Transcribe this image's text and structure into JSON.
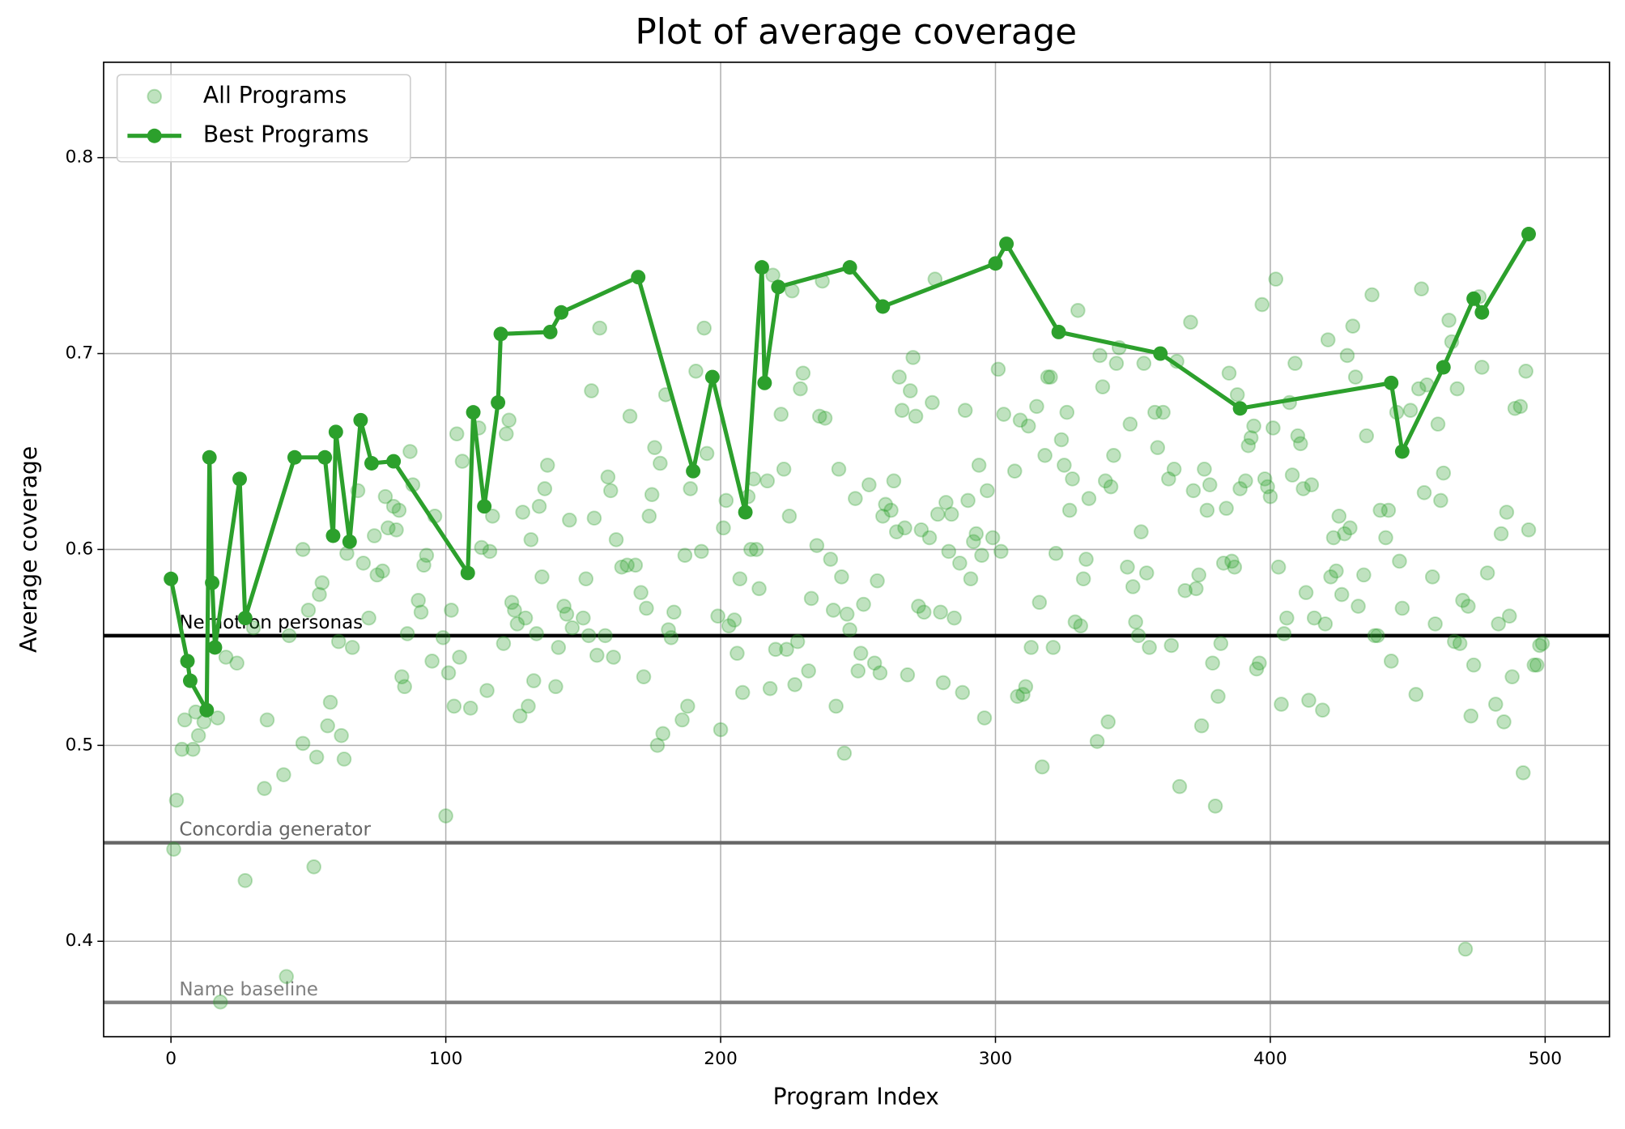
{
  "chart_data": {
    "type": "scatter",
    "title": "Plot of average coverage",
    "xlabel": "Program Index",
    "ylabel": "Average coverage",
    "xlim": [
      -24.5,
      523.4
    ],
    "ylim": [
      0.3513,
      0.8487
    ],
    "xticks": [
      0,
      100,
      200,
      300,
      400,
      500
    ],
    "yticks": [
      0.4,
      0.5,
      0.6,
      0.7,
      0.8
    ],
    "grid": true,
    "legend": "upper left",
    "hlines": [
      {
        "label": "Nemotron personas",
        "value": 0.556,
        "color": "#000000"
      },
      {
        "label": "Concordia generator",
        "value": 0.4503,
        "color": "#666666"
      },
      {
        "label": "Name baseline",
        "value": 0.3688,
        "color": "#808080"
      }
    ],
    "series": [
      {
        "name": "All Programs",
        "type": "scatter",
        "color": "#2ca02c",
        "alpha": 0.3,
        "x": [
          1,
          2,
          4,
          5,
          8,
          9,
          10,
          12,
          17,
          18,
          20,
          24,
          27,
          30,
          34,
          35,
          41,
          42,
          43,
          48,
          48,
          50,
          52,
          53,
          54,
          55,
          57,
          58,
          61,
          62,
          63,
          64,
          66,
          68,
          70,
          72,
          74,
          75,
          77,
          78,
          79,
          81,
          82,
          83,
          84,
          85,
          86,
          87,
          88,
          90,
          91,
          92,
          93,
          95,
          96,
          99,
          100,
          101,
          102,
          103,
          104,
          105,
          106,
          109,
          112,
          113,
          115,
          116,
          117,
          121,
          122,
          123,
          124,
          125,
          126,
          127,
          128,
          129,
          130,
          131,
          132,
          133,
          134,
          135,
          136,
          137,
          140,
          141,
          143,
          144,
          145,
          146,
          150,
          151,
          152,
          153,
          154,
          155,
          156,
          158,
          159,
          160,
          161,
          162,
          164,
          166,
          167,
          169,
          171,
          172,
          173,
          174,
          175,
          176,
          177,
          178,
          179,
          180,
          181,
          182,
          183,
          186,
          187,
          188,
          189,
          191,
          193,
          194,
          195,
          199,
          200,
          201,
          202,
          203,
          205,
          206,
          207,
          208,
          210,
          211,
          212,
          213,
          214,
          217,
          218,
          219,
          220,
          222,
          223,
          224,
          225,
          226,
          227,
          228,
          229,
          230,
          232,
          233,
          235,
          236,
          237,
          238,
          240,
          241,
          242,
          243,
          244,
          245,
          246,
          247,
          249,
          250,
          251,
          252,
          254,
          256,
          257,
          258,
          259,
          260,
          262,
          263,
          264,
          265,
          266,
          267,
          268,
          269,
          270,
          271,
          272,
          273,
          274,
          276,
          277,
          278,
          279,
          280,
          281,
          282,
          283,
          284,
          285,
          287,
          288,
          289,
          290,
          291,
          292,
          293,
          294,
          295,
          296,
          297,
          299,
          301,
          302,
          303,
          307,
          308,
          309,
          310,
          311,
          312,
          313,
          315,
          316,
          317,
          318,
          319,
          320,
          321,
          322,
          324,
          325,
          326,
          327,
          328,
          329,
          330,
          331,
          332,
          333,
          334,
          337,
          338,
          339,
          340,
          341,
          342,
          343,
          344,
          345,
          348,
          349,
          350,
          351,
          352,
          353,
          354,
          355,
          356,
          358,
          359,
          361,
          363,
          364,
          365,
          366,
          367,
          369,
          371,
          372,
          373,
          374,
          375,
          376,
          377,
          378,
          379,
          380,
          381,
          382,
          383,
          384,
          385,
          386,
          387,
          388,
          389,
          391,
          392,
          393,
          394,
          395,
          396,
          397,
          398,
          399,
          400,
          401,
          402,
          403,
          404,
          405,
          406,
          407,
          408,
          409,
          410,
          411,
          412,
          413,
          414,
          415,
          416,
          419,
          420,
          421,
          422,
          423,
          424,
          425,
          426,
          427,
          428,
          429,
          430,
          431,
          432,
          434,
          435,
          437,
          438,
          439,
          440,
          442,
          443,
          444,
          446,
          447,
          448,
          451,
          453,
          454,
          455,
          456,
          457,
          459,
          460,
          461,
          462,
          463,
          465,
          466,
          467,
          468,
          469,
          470,
          471,
          472,
          473,
          474,
          476,
          477,
          479,
          482,
          483,
          484,
          485,
          486,
          487,
          488,
          489,
          491,
          492,
          493,
          494,
          496,
          497,
          498,
          499
        ],
        "values": [
          0.447,
          0.472,
          0.498,
          0.513,
          0.498,
          0.517,
          0.505,
          0.512,
          0.514,
          0.369,
          0.545,
          0.542,
          0.431,
          0.56,
          0.478,
          0.513,
          0.485,
          0.382,
          0.556,
          0.501,
          0.6,
          0.569,
          0.438,
          0.494,
          0.577,
          0.583,
          0.51,
          0.522,
          0.553,
          0.505,
          0.493,
          0.598,
          0.55,
          0.63,
          0.593,
          0.565,
          0.607,
          0.587,
          0.589,
          0.627,
          0.611,
          0.622,
          0.61,
          0.62,
          0.535,
          0.53,
          0.557,
          0.65,
          0.633,
          0.574,
          0.568,
          0.592,
          0.597,
          0.543,
          0.617,
          0.555,
          0.464,
          0.537,
          0.569,
          0.52,
          0.659,
          0.545,
          0.645,
          0.519,
          0.662,
          0.601,
          0.528,
          0.599,
          0.617,
          0.552,
          0.659,
          0.666,
          0.573,
          0.569,
          0.562,
          0.515,
          0.619,
          0.565,
          0.52,
          0.605,
          0.533,
          0.557,
          0.622,
          0.586,
          0.631,
          0.643,
          0.53,
          0.55,
          0.571,
          0.567,
          0.615,
          0.56,
          0.565,
          0.585,
          0.556,
          0.681,
          0.616,
          0.546,
          0.713,
          0.556,
          0.637,
          0.63,
          0.545,
          0.605,
          0.591,
          0.592,
          0.668,
          0.592,
          0.578,
          0.535,
          0.57,
          0.617,
          0.628,
          0.652,
          0.5,
          0.644,
          0.506,
          0.679,
          0.559,
          0.555,
          0.568,
          0.513,
          0.597,
          0.52,
          0.631,
          0.691,
          0.599,
          0.713,
          0.649,
          0.566,
          0.508,
          0.611,
          0.625,
          0.561,
          0.564,
          0.547,
          0.585,
          0.527,
          0.627,
          0.6,
          0.636,
          0.6,
          0.58,
          0.635,
          0.529,
          0.74,
          0.549,
          0.669,
          0.641,
          0.549,
          0.617,
          0.732,
          0.531,
          0.553,
          0.682,
          0.69,
          0.538,
          0.575,
          0.602,
          0.668,
          0.737,
          0.667,
          0.595,
          0.569,
          0.52,
          0.641,
          0.586,
          0.496,
          0.567,
          0.559,
          0.626,
          0.538,
          0.547,
          0.572,
          0.633,
          0.542,
          0.584,
          0.537,
          0.617,
          0.623,
          0.62,
          0.635,
          0.609,
          0.688,
          0.671,
          0.611,
          0.536,
          0.681,
          0.698,
          0.668,
          0.571,
          0.61,
          0.568,
          0.606,
          0.675,
          0.738,
          0.618,
          0.568,
          0.532,
          0.624,
          0.599,
          0.618,
          0.565,
          0.593,
          0.527,
          0.671,
          0.625,
          0.585,
          0.604,
          0.608,
          0.643,
          0.597,
          0.514,
          0.63,
          0.606,
          0.692,
          0.599,
          0.669,
          0.64,
          0.525,
          0.666,
          0.526,
          0.53,
          0.663,
          0.55,
          0.673,
          0.573,
          0.489,
          0.648,
          0.688,
          0.688,
          0.55,
          0.598,
          0.656,
          0.643,
          0.67,
          0.62,
          0.636,
          0.563,
          0.722,
          0.561,
          0.585,
          0.595,
          0.626,
          0.502,
          0.699,
          0.683,
          0.635,
          0.512,
          0.632,
          0.648,
          0.695,
          0.703,
          0.591,
          0.664,
          0.581,
          0.563,
          0.556,
          0.609,
          0.695,
          0.588,
          0.55,
          0.67,
          0.652,
          0.67,
          0.636,
          0.551,
          0.641,
          0.696,
          0.479,
          0.579,
          0.716,
          0.63,
          0.58,
          0.587,
          0.51,
          0.641,
          0.62,
          0.633,
          0.542,
          0.469,
          0.525,
          0.552,
          0.593,
          0.621,
          0.69,
          0.594,
          0.591,
          0.679,
          0.631,
          0.635,
          0.653,
          0.657,
          0.663,
          0.539,
          0.542,
          0.725,
          0.636,
          0.632,
          0.627,
          0.662,
          0.738,
          0.591,
          0.521,
          0.557,
          0.565,
          0.675,
          0.638,
          0.695,
          0.658,
          0.654,
          0.631,
          0.578,
          0.523,
          0.633,
          0.565,
          0.518,
          0.562,
          0.707,
          0.586,
          0.606,
          0.589,
          0.617,
          0.577,
          0.608,
          0.699,
          0.611,
          0.714,
          0.688,
          0.571,
          0.587,
          0.658,
          0.73,
          0.556,
          0.556,
          0.62,
          0.606,
          0.62,
          0.543,
          0.67,
          0.594,
          0.57,
          0.671,
          0.526,
          0.682,
          0.733,
          0.629,
          0.684,
          0.586,
          0.562,
          0.664,
          0.625,
          0.639,
          0.717,
          0.706,
          0.553,
          0.682,
          0.552,
          0.574,
          0.396,
          0.571,
          0.515,
          0.541,
          0.729,
          0.693,
          0.588,
          0.521,
          0.562,
          0.608,
          0.512,
          0.619,
          0.566,
          0.535,
          0.672,
          0.673,
          0.486,
          0.691,
          0.61,
          0.541,
          0.541,
          0.551,
          0.552
        ]
      },
      {
        "name": "Best Programs",
        "type": "line",
        "color": "#2ca02c",
        "x": [
          0,
          6,
          7,
          13,
          14,
          15,
          16,
          25,
          27,
          45,
          56,
          59,
          60,
          65,
          69,
          73,
          81,
          108,
          110,
          114,
          119,
          120,
          138,
          142,
          170,
          190,
          197,
          209,
          215,
          216,
          221,
          247,
          259,
          300,
          304,
          323,
          360,
          389,
          444,
          448,
          463,
          474,
          477,
          494
        ],
        "values": [
          0.585,
          0.543,
          0.533,
          0.518,
          0.647,
          0.583,
          0.55,
          0.636,
          0.565,
          0.647,
          0.647,
          0.607,
          0.66,
          0.604,
          0.666,
          0.644,
          0.645,
          0.588,
          0.67,
          0.622,
          0.675,
          0.71,
          0.711,
          0.721,
          0.739,
          0.64,
          0.688,
          0.619,
          0.744,
          0.685,
          0.734,
          0.744,
          0.724,
          0.746,
          0.756,
          0.711,
          0.7,
          0.672,
          0.685,
          0.65,
          0.693,
          0.728,
          0.721,
          0.761
        ]
      }
    ]
  }
}
